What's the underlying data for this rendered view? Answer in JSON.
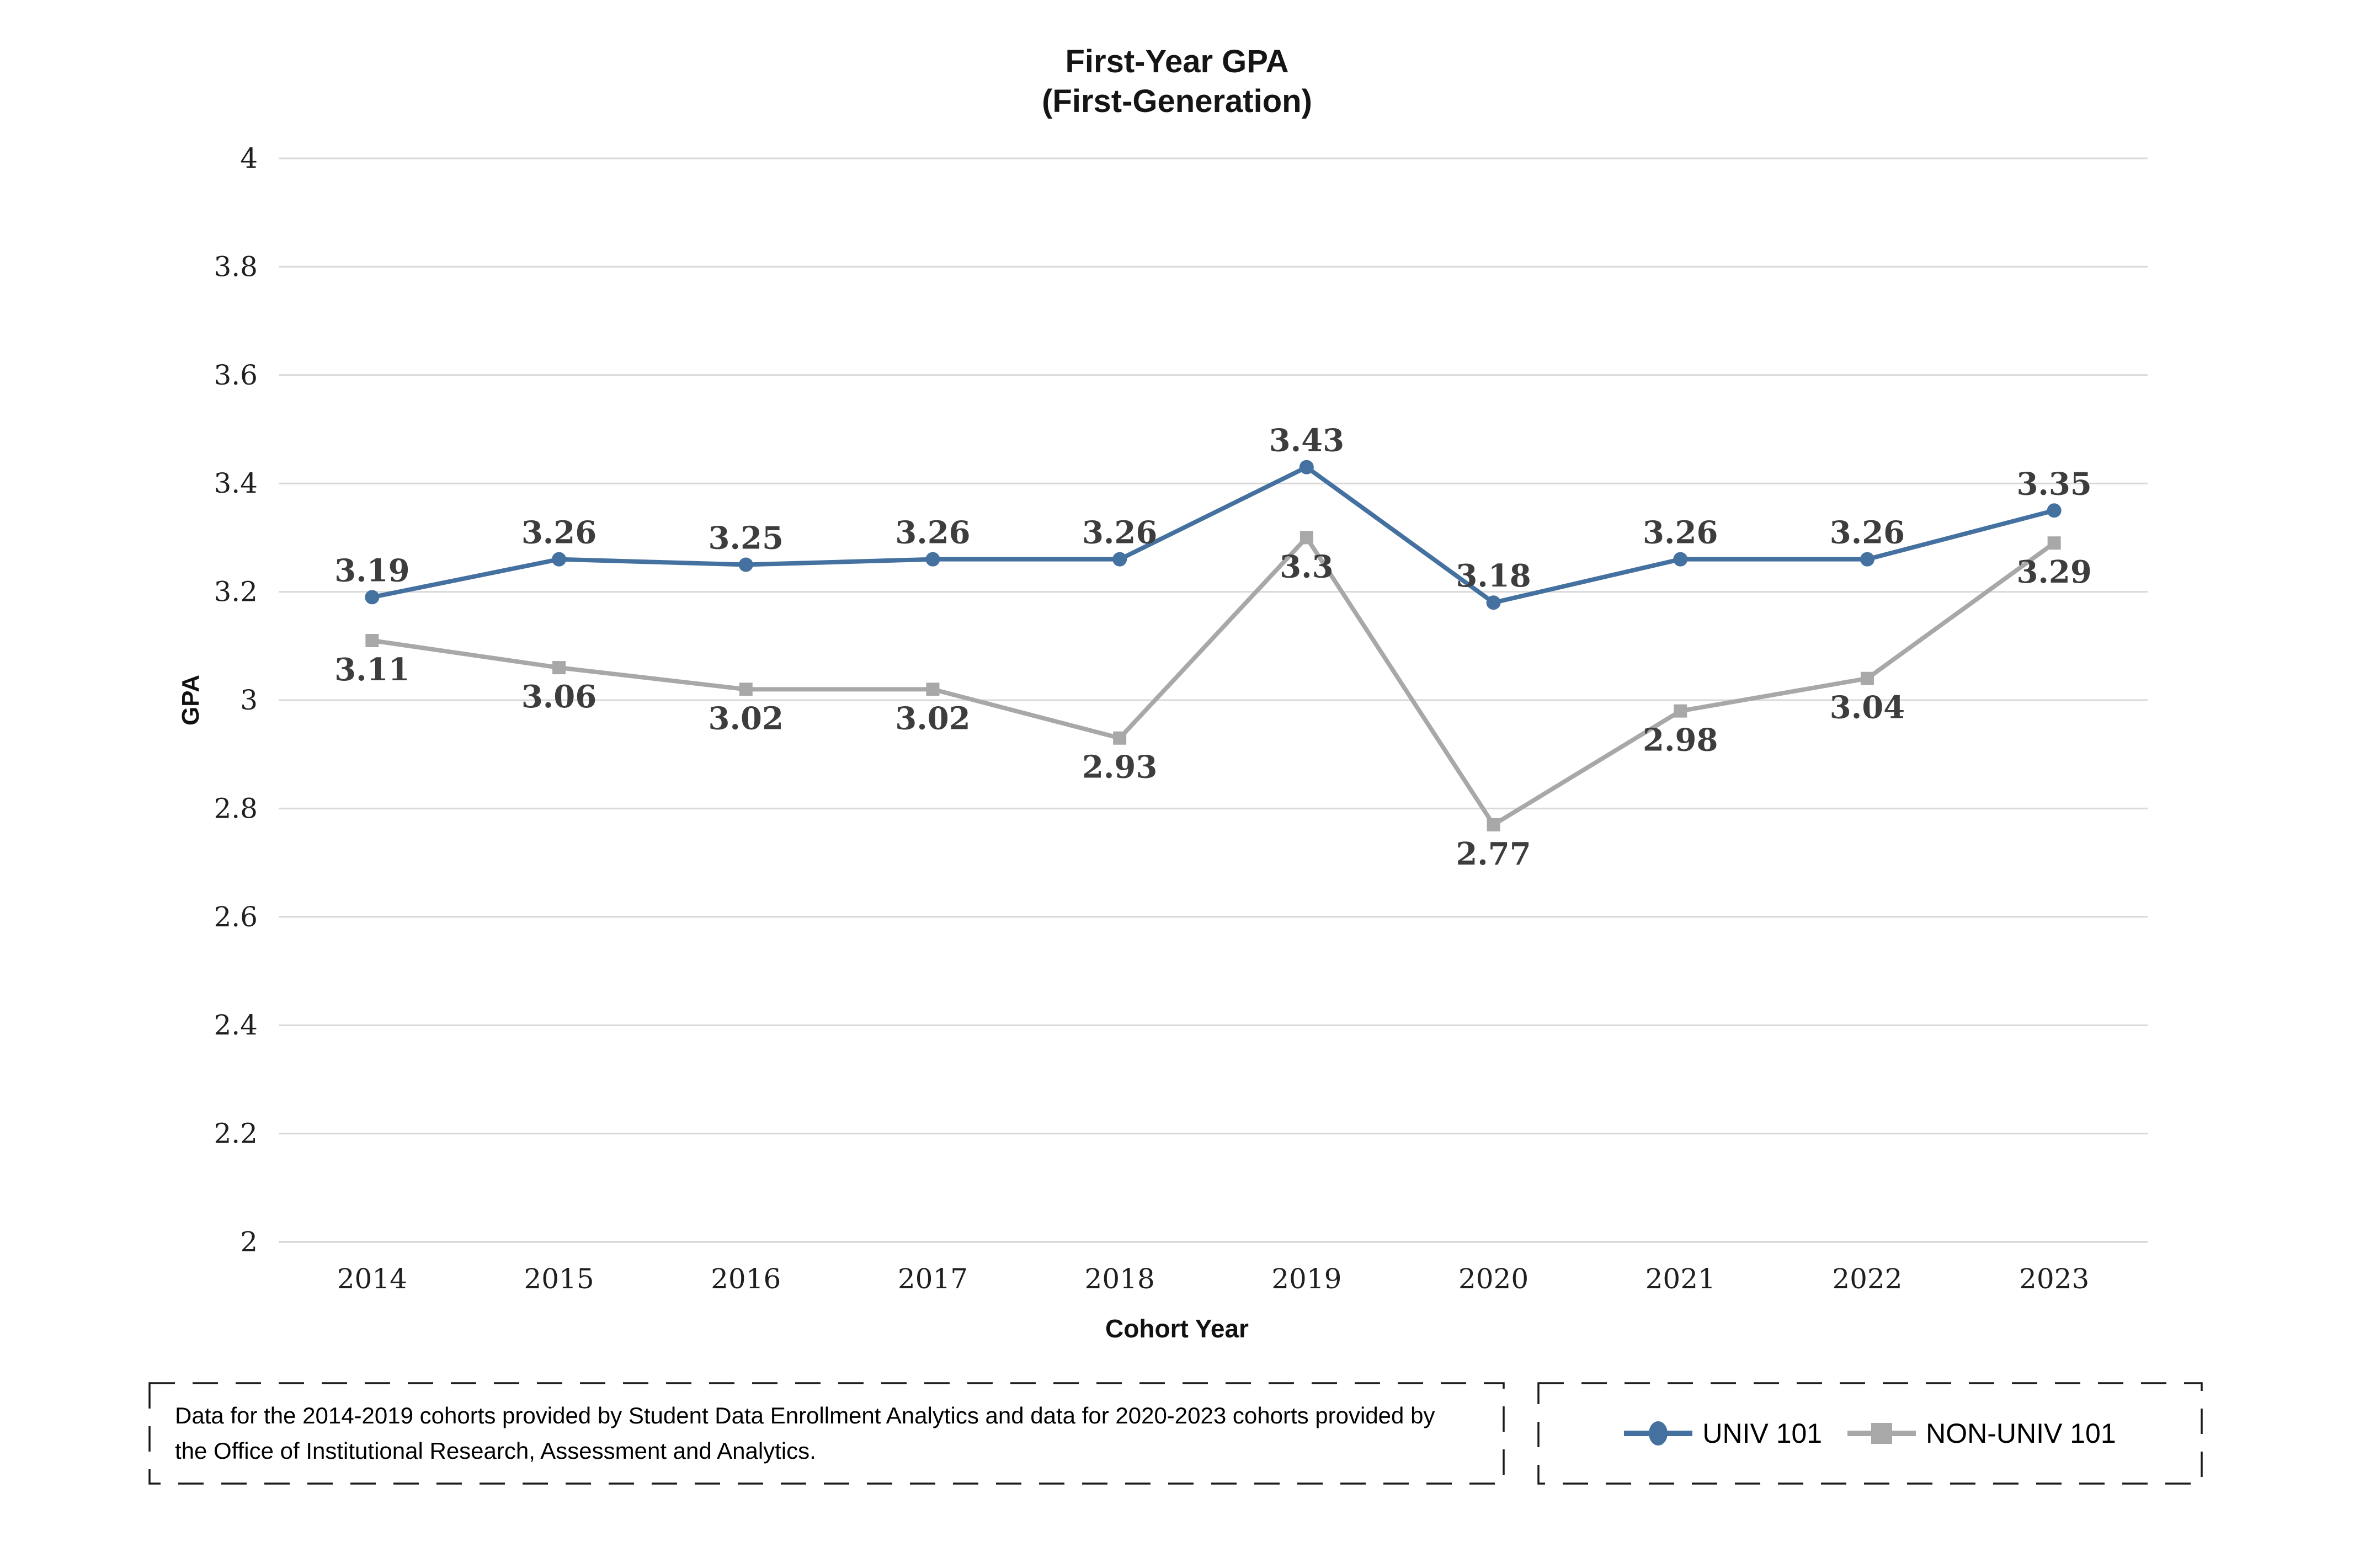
{
  "title": {
    "line1": "First-Year GPA",
    "line2": "(First-Generation)"
  },
  "axes": {
    "y_title": "GPA",
    "x_title": "Cohort Year"
  },
  "note": {
    "text": "Data for the 2014-2019 cohorts provided by Student Data Enrollment Analytics and data for 2020-2023 cohorts provided by the Office of Institutional Research, Assessment and Analytics."
  },
  "colors": {
    "univ101_blue": "#44719f",
    "non_univ101_gray": "#a8a8a8",
    "gridline": "#d9d9d9",
    "axis_line": "#d0d0d0",
    "tick_label": "#1f1f1f",
    "data_label": "#3d3d3d",
    "box_border": "#1a1a1a"
  },
  "chart_data": {
    "type": "line",
    "title": "First-Year GPA (First-Generation)",
    "xlabel": "Cohort Year",
    "ylabel": "GPA",
    "categories": [
      "2014",
      "2015",
      "2016",
      "2017",
      "2018",
      "2019",
      "2020",
      "2021",
      "2022",
      "2023"
    ],
    "series": [
      {
        "name": "UNIV 101",
        "color": "#44719f",
        "marker": "circle",
        "label_position": "above",
        "values": [
          3.19,
          3.26,
          3.25,
          3.26,
          3.26,
          3.43,
          3.18,
          3.26,
          3.26,
          3.35
        ]
      },
      {
        "name": "NON-UNIV 101",
        "color": "#a8a8a8",
        "marker": "square",
        "label_position": "below",
        "values": [
          3.11,
          3.06,
          3.02,
          3.02,
          2.93,
          3.3,
          2.77,
          2.98,
          3.04,
          3.29
        ]
      }
    ],
    "ylim": [
      2,
      4
    ],
    "ytick_step": 0.2,
    "grid": true,
    "legend_position": "bottom-right"
  }
}
